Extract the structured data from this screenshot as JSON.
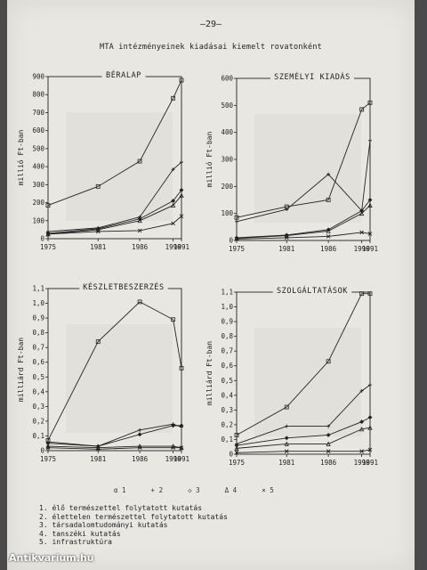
{
  "page": {
    "number": "–29–",
    "title": "MTA intézményeinek kiadásai kiemelt rovatonként",
    "watermark": "Antikvarium.hu"
  },
  "legend": {
    "symbols": [
      {
        "key": "1",
        "label": "α 1"
      },
      {
        "key": "2",
        "label": "+ 2"
      },
      {
        "key": "3",
        "label": "◇ 3"
      },
      {
        "key": "4",
        "label": "Δ 4"
      },
      {
        "key": "5",
        "label": "× 5"
      }
    ],
    "items": [
      "1. élő természettel folytatott kutatás",
      "2. élettelen természettel folytatott kutatás",
      "3. társadalomtudományi kutatás",
      "4. tanszéki kutatás",
      "5. infrastruktúra"
    ]
  },
  "chart_data": [
    {
      "type": "line",
      "title": "BÉRALAP",
      "ylabel": "millió Ft-ban",
      "x": [
        1975,
        1981,
        1986,
        1990,
        1991
      ],
      "ylim": [
        0,
        900
      ],
      "yticks": [
        "0",
        "100",
        "200",
        "300",
        "400",
        "500",
        "600",
        "700",
        "800",
        "900"
      ],
      "xticks": [
        "1975",
        "1981",
        "1986",
        "1990",
        "1991"
      ],
      "series": [
        {
          "values": [
            185,
            290,
            430,
            780,
            880
          ]
        },
        {
          "values": [
            40,
            60,
            120,
            385,
            425
          ]
        },
        {
          "values": [
            30,
            55,
            110,
            210,
            270
          ]
        },
        {
          "values": [
            25,
            50,
            100,
            185,
            240
          ]
        },
        {
          "values": [
            25,
            40,
            45,
            85,
            125
          ]
        }
      ]
    },
    {
      "type": "line",
      "title": "SZEMÉLYI KIADÁS",
      "ylabel": "millió Ft-ban",
      "x": [
        1975,
        1981,
        1986,
        1990,
        1991
      ],
      "ylim": [
        0,
        600
      ],
      "yticks": [
        "0",
        "100",
        "200",
        "300",
        "400",
        "500",
        "600"
      ],
      "xticks": [
        "1975",
        "1981",
        "1986",
        "1990",
        "1991"
      ],
      "series": [
        {
          "values": [
            85,
            125,
            150,
            485,
            510
          ]
        },
        {
          "values": [
            70,
            115,
            245,
            110,
            370
          ]
        },
        {
          "values": [
            10,
            20,
            40,
            110,
            150
          ]
        },
        {
          "values": [
            8,
            18,
            35,
            100,
            130
          ]
        },
        {
          "values": [
            5,
            10,
            15,
            30,
            25
          ]
        }
      ]
    },
    {
      "type": "line",
      "title": "KÉSZLETBESZERZÉS",
      "ylabel": "milliárd Ft-ban",
      "x": [
        1975,
        1981,
        1986,
        1990,
        1991
      ],
      "ylim": [
        0,
        1.1
      ],
      "yticks": [
        "0",
        "0,1",
        "0,2",
        "0,3",
        "0,4",
        "0,5",
        "0,6",
        "0,7",
        "0,8",
        "0,9",
        "1,0",
        "1,1"
      ],
      "xticks": [
        "1975",
        "1981",
        "1986",
        "1990",
        "1991"
      ],
      "series": [
        {
          "values": [
            0.07,
            0.74,
            1.01,
            0.89,
            0.56
          ]
        },
        {
          "values": [
            0.06,
            0.03,
            0.14,
            0.18,
            0.16
          ]
        },
        {
          "values": [
            0.05,
            0.03,
            0.11,
            0.17,
            0.17
          ]
        },
        {
          "values": [
            0.03,
            0.02,
            0.03,
            0.03,
            0.02
          ]
        },
        {
          "values": [
            0.02,
            0.01,
            0.02,
            0.02,
            0.02
          ]
        }
      ]
    },
    {
      "type": "line",
      "title": "SZOLGÁLTATÁSOK",
      "ylabel": "milliárd Ft-ban",
      "x": [
        1975,
        1981,
        1986,
        1990,
        1991
      ],
      "ylim": [
        0,
        1.1
      ],
      "yticks": [
        "0",
        "0,1",
        "0,2",
        "0,3",
        "0,4",
        "0,5",
        "0,6",
        "0,7",
        "0,8",
        "0,9",
        "1,0",
        "1,1"
      ],
      "xticks": [
        "1975",
        "1981",
        "1986",
        "1990",
        "1991"
      ],
      "series": [
        {
          "values": [
            0.13,
            0.32,
            0.63,
            1.09,
            1.09
          ]
        },
        {
          "values": [
            0.07,
            0.19,
            0.19,
            0.43,
            0.47
          ]
        },
        {
          "values": [
            0.06,
            0.11,
            0.13,
            0.22,
            0.25
          ]
        },
        {
          "values": [
            0.04,
            0.07,
            0.07,
            0.17,
            0.18
          ]
        },
        {
          "values": [
            0.01,
            0.02,
            0.02,
            0.02,
            0.03
          ]
        }
      ]
    }
  ]
}
